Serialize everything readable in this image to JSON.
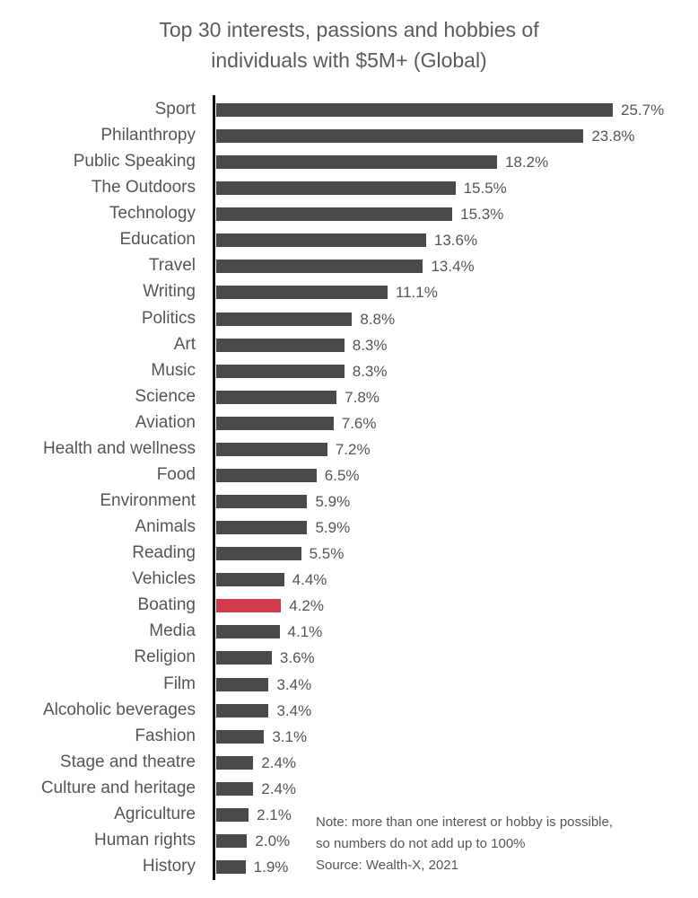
{
  "chart_data": {
    "type": "bar",
    "orientation": "horizontal",
    "title": "Top 30 interests, passions and hobbies of individuals with $5M+ (Global)",
    "title_lines": [
      "Top 30 interests, passions and hobbies of",
      "individuals with $5M+ (Global)"
    ],
    "xlabel": "",
    "ylabel": "",
    "xlim": [
      0,
      26
    ],
    "grid": false,
    "legend": null,
    "bar_color": "#4a4a4a",
    "highlight_color": "#d03a4b",
    "highlight_category": "Boating",
    "categories": [
      "Sport",
      "Philanthropy",
      "Public Speaking",
      "The Outdoors",
      "Technology",
      "Education",
      "Travel",
      "Writing",
      "Politics",
      "Art",
      "Music",
      "Science",
      "Aviation",
      "Health and wellness",
      "Food",
      "Environment",
      "Animals",
      "Reading",
      "Vehicles",
      "Boating",
      "Media",
      "Religion",
      "Film",
      "Alcoholic beverages",
      "Fashion",
      "Stage and theatre",
      "Culture and heritage",
      "Agriculture",
      "Human rights",
      "History"
    ],
    "values": [
      25.7,
      23.8,
      18.2,
      15.5,
      15.3,
      13.6,
      13.4,
      11.1,
      8.8,
      8.3,
      8.3,
      7.8,
      7.6,
      7.2,
      6.5,
      5.9,
      5.9,
      5.5,
      4.4,
      4.2,
      4.1,
      3.6,
      3.4,
      3.4,
      3.1,
      2.4,
      2.4,
      2.1,
      2.0,
      1.9
    ],
    "value_labels": [
      "25.7%",
      "23.8%",
      "18.2%",
      "15.5%",
      "15.3%",
      "13.6%",
      "13.4%",
      "11.1%",
      "8.8%",
      "8.3%",
      "8.3%",
      "7.8%",
      "7.6%",
      "7.2%",
      "6.5%",
      "5.9%",
      "5.9%",
      "5.5%",
      "4.4%",
      "4.2%",
      "4.1%",
      "3.6%",
      "3.4%",
      "3.4%",
      "3.1%",
      "2.4%",
      "2.4%",
      "2.1%",
      "2.0%",
      "1.9%"
    ],
    "annotations": [
      "Note: more than one interest or hobby is possible,",
      "so numbers do not add up to 100%",
      "Source: Wealth-X, 2021"
    ]
  },
  "note": {
    "line1": "Note: more than one interest or hobby is possible,",
    "line2": "so numbers do not add up to 100%",
    "source": "Source: Wealth-X, 2021"
  }
}
